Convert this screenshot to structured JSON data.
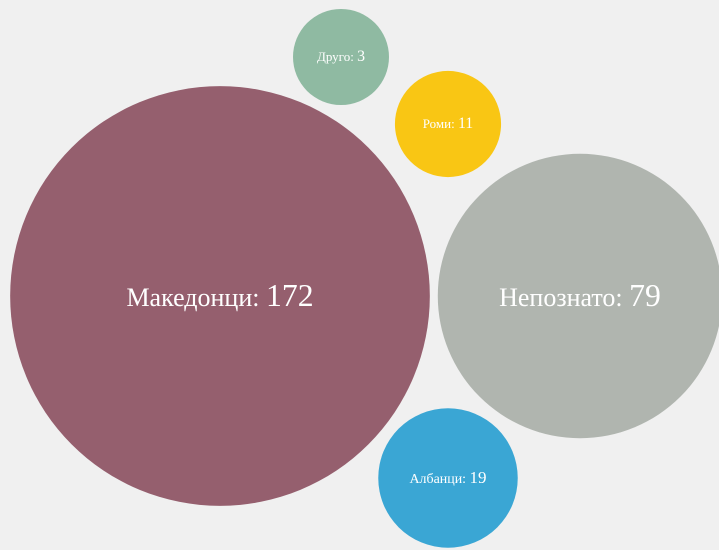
{
  "chart_data": {
    "type": "bubble",
    "categories": [
      "Македонци",
      "Непознато",
      "Албанци",
      "Роми",
      "Друго"
    ],
    "values": [
      172,
      79,
      19,
      11,
      3
    ],
    "colors": [
      "#955f6e",
      "#b0b5af",
      "#3aa6d4",
      "#f9c614",
      "#8fbaa2"
    ]
  }
}
